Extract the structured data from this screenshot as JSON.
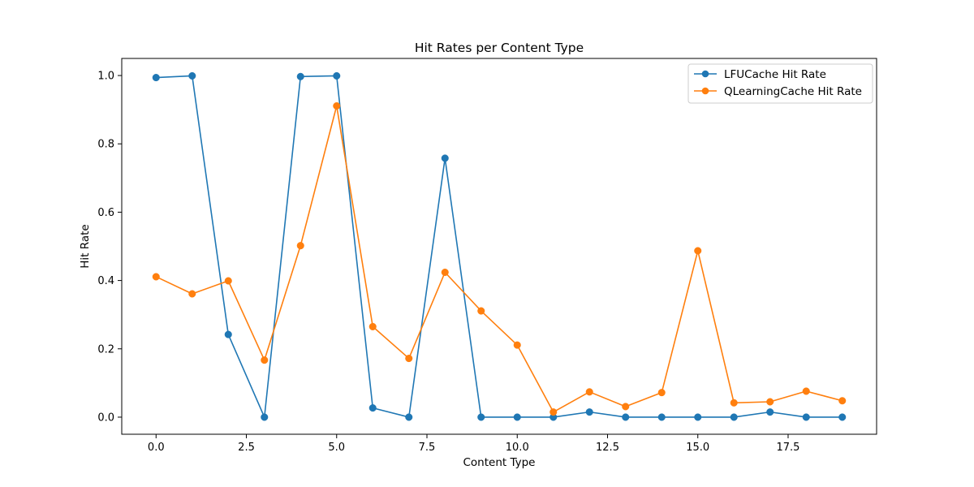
{
  "chart_data": {
    "type": "line",
    "title": "Hit Rates per Content Type",
    "xlabel": "Content Type",
    "ylabel": "Hit Rate",
    "xlim": [
      -0.95,
      19.95
    ],
    "ylim": [
      -0.05,
      1.05
    ],
    "xticks": [
      0.0,
      2.5,
      5.0,
      7.5,
      10.0,
      12.5,
      15.0,
      17.5
    ],
    "xtick_labels": [
      "0.0",
      "2.5",
      "5.0",
      "7.5",
      "10.0",
      "12.5",
      "15.0",
      "17.5"
    ],
    "yticks": [
      0.0,
      0.2,
      0.4,
      0.6,
      0.8,
      1.0
    ],
    "ytick_labels": [
      "0.0",
      "0.2",
      "0.4",
      "0.6",
      "0.8",
      "1.0"
    ],
    "grid": false,
    "legend_position": "top-right",
    "x": [
      0,
      1,
      2,
      3,
      4,
      5,
      6,
      7,
      8,
      9,
      10,
      11,
      12,
      13,
      14,
      15,
      16,
      17,
      18,
      19
    ],
    "series": [
      {
        "name": "LFUCache Hit Rate",
        "color": "#1f77b4",
        "marker": "circle",
        "values": [
          0.994,
          0.999,
          0.242,
          0.0,
          0.997,
          0.999,
          0.027,
          0.0,
          0.758,
          0.0,
          0.0,
          0.0,
          0.015,
          0.0,
          0.0,
          0.0,
          0.0,
          0.015,
          0.0,
          0.0
        ]
      },
      {
        "name": "QLearningCache Hit Rate",
        "color": "#ff7f0e",
        "marker": "circle",
        "values": [
          0.411,
          0.361,
          0.399,
          0.167,
          0.502,
          0.911,
          0.265,
          0.172,
          0.424,
          0.311,
          0.211,
          0.015,
          0.074,
          0.031,
          0.072,
          0.487,
          0.042,
          0.045,
          0.076,
          0.048
        ]
      }
    ]
  }
}
